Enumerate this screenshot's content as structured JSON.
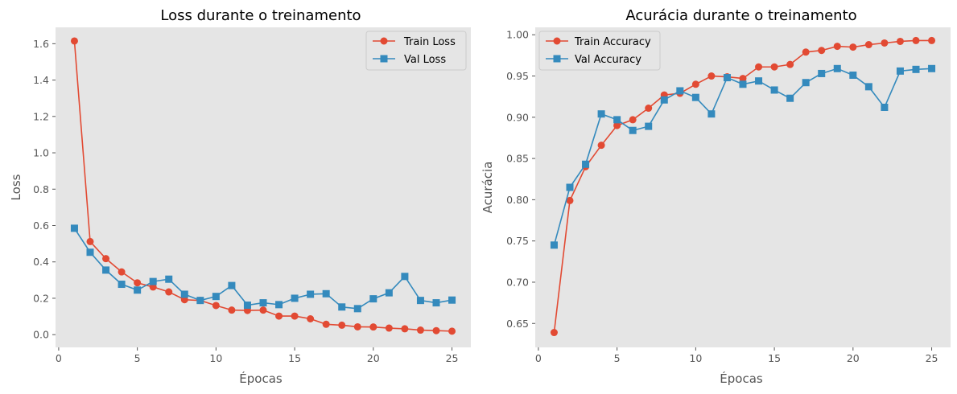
{
  "colors": {
    "train": "#E24A33",
    "val": "#348ABD",
    "plot_bg": "#E5E5E5",
    "legend_border": "#CCCCCC"
  },
  "chart_data": [
    {
      "type": "line",
      "title": "Loss durante o treinamento",
      "xlabel": "Épocas",
      "ylabel": "Loss",
      "xlim": [
        -0.2,
        26.2
      ],
      "ylim": [
        -0.07,
        1.69
      ],
      "xticks": [
        0,
        5,
        10,
        15,
        20,
        25
      ],
      "yticks": [
        0.0,
        0.2,
        0.4,
        0.6,
        0.8,
        1.0,
        1.2,
        1.4,
        1.6
      ],
      "ytick_decimals": 1,
      "grid": false,
      "legend": "top-right",
      "x": [
        1,
        2,
        3,
        4,
        5,
        6,
        7,
        8,
        9,
        10,
        11,
        12,
        13,
        14,
        15,
        16,
        17,
        18,
        19,
        20,
        21,
        22,
        23,
        24,
        25
      ],
      "series": [
        {
          "name": "Train Loss",
          "color_key": "train",
          "marker": "circle",
          "values": [
            1.615,
            0.512,
            0.418,
            0.345,
            0.285,
            0.262,
            0.235,
            0.192,
            0.188,
            0.16,
            0.135,
            0.133,
            0.135,
            0.102,
            0.102,
            0.087,
            0.057,
            0.052,
            0.043,
            0.042,
            0.036,
            0.032,
            0.025,
            0.022,
            0.019
          ]
        },
        {
          "name": "Val Loss",
          "color_key": "val",
          "marker": "square",
          "values": [
            0.585,
            0.453,
            0.355,
            0.277,
            0.245,
            0.292,
            0.305,
            0.222,
            0.188,
            0.21,
            0.27,
            0.162,
            0.175,
            0.165,
            0.2,
            0.222,
            0.225,
            0.152,
            0.143,
            0.197,
            0.23,
            0.32,
            0.188,
            0.175,
            0.19
          ]
        }
      ]
    },
    {
      "type": "line",
      "title": "Acurácia durante o treinamento",
      "xlabel": "Épocas",
      "ylabel": "Acurácia",
      "xlim": [
        -0.2,
        26.2
      ],
      "ylim": [
        0.621,
        1.009
      ],
      "xticks": [
        0,
        5,
        10,
        15,
        20,
        25
      ],
      "yticks": [
        0.65,
        0.7,
        0.75,
        0.8,
        0.85,
        0.9,
        0.95,
        1.0
      ],
      "ytick_decimals": 2,
      "grid": false,
      "legend": "top-left",
      "x": [
        1,
        2,
        3,
        4,
        5,
        6,
        7,
        8,
        9,
        10,
        11,
        12,
        13,
        14,
        15,
        16,
        17,
        18,
        19,
        20,
        21,
        22,
        23,
        24,
        25
      ],
      "series": [
        {
          "name": "Train Accuracy",
          "color_key": "train",
          "marker": "circle",
          "values": [
            0.639,
            0.799,
            0.84,
            0.866,
            0.89,
            0.897,
            0.911,
            0.927,
            0.929,
            0.94,
            0.95,
            0.949,
            0.947,
            0.961,
            0.961,
            0.964,
            0.979,
            0.981,
            0.986,
            0.985,
            0.988,
            0.99,
            0.992,
            0.993,
            0.993
          ]
        },
        {
          "name": "Val Accuracy",
          "color_key": "val",
          "marker": "square",
          "values": [
            0.745,
            0.815,
            0.843,
            0.904,
            0.897,
            0.884,
            0.889,
            0.921,
            0.932,
            0.924,
            0.904,
            0.948,
            0.94,
            0.944,
            0.933,
            0.923,
            0.942,
            0.953,
            0.959,
            0.951,
            0.937,
            0.912,
            0.956,
            0.958,
            0.959
          ]
        }
      ]
    }
  ]
}
